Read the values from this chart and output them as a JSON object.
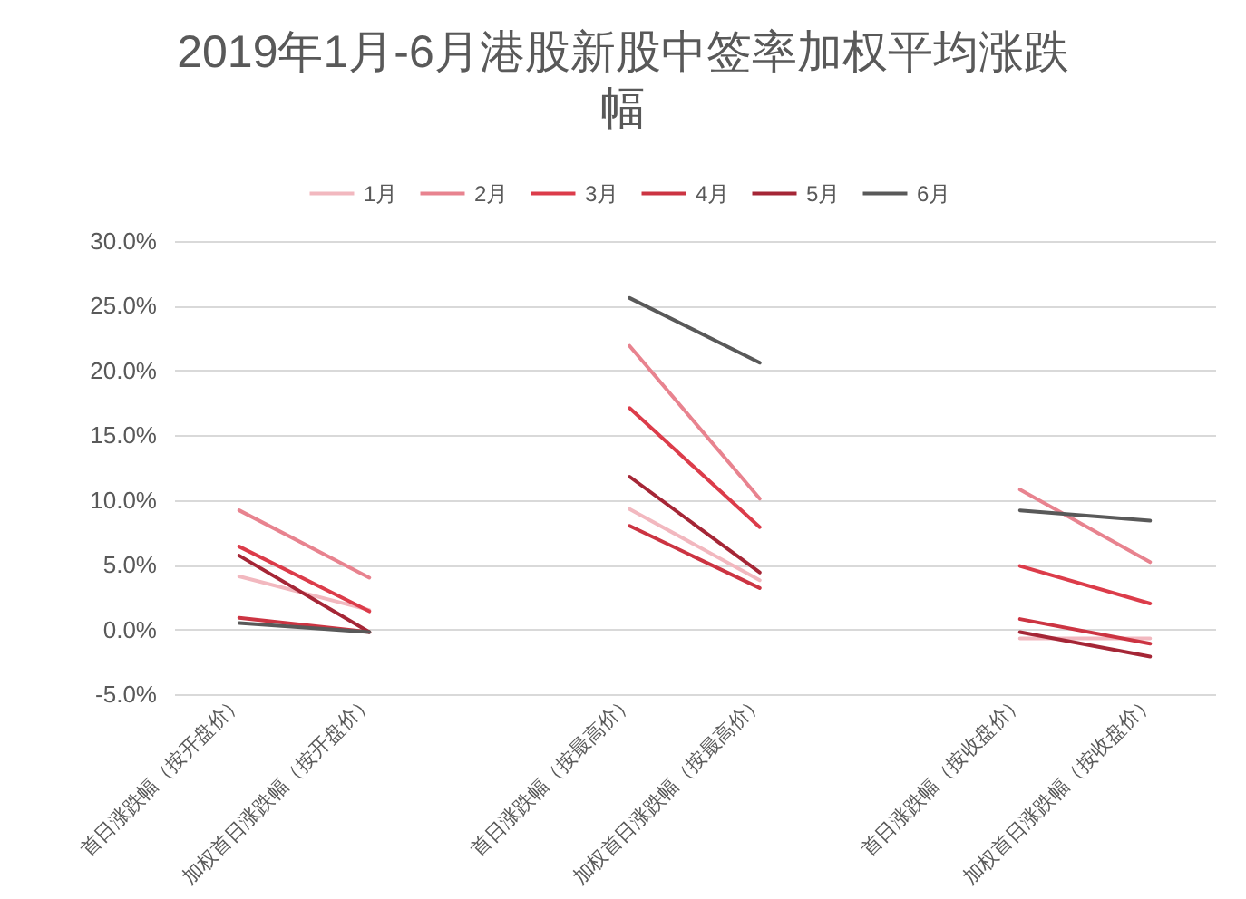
{
  "chart_data": {
    "type": "line",
    "title": "2019年1月-6月港股新股中签率加权平均涨跌幅",
    "categories": [
      "首日涨跌幅（按开盘价）",
      "加权首日涨跌幅（按开盘价）",
      null,
      "首日涨跌幅（按最高价）",
      "加权首日涨跌幅（按最高价）",
      null,
      "首日涨跌幅（按收盘价）",
      "加权首日涨跌幅（按收盘价）"
    ],
    "series": [
      {
        "name": "1月",
        "color": "#f2b8bf",
        "values": [
          4.1,
          1.5,
          null,
          9.3,
          3.8,
          null,
          -0.7,
          -0.7
        ]
      },
      {
        "name": "2月",
        "color": "#e8838f",
        "values": [
          9.2,
          4.0,
          null,
          21.9,
          10.1,
          null,
          10.8,
          5.2
        ]
      },
      {
        "name": "3月",
        "color": "#dc3c4a",
        "values": [
          6.4,
          1.4,
          null,
          17.1,
          7.9,
          null,
          4.9,
          2.0
        ]
      },
      {
        "name": "4月",
        "color": "#cc3442",
        "values": [
          0.9,
          -0.2,
          null,
          8.0,
          3.2,
          null,
          0.8,
          -1.1
        ]
      },
      {
        "name": "5月",
        "color": "#a52636",
        "values": [
          5.7,
          -0.2,
          null,
          11.8,
          4.4,
          null,
          -0.2,
          -2.1
        ]
      },
      {
        "name": "6月",
        "color": "#595959",
        "values": [
          0.5,
          -0.2,
          null,
          25.6,
          20.6,
          null,
          9.2,
          8.4
        ]
      }
    ],
    "ylim": [
      -5,
      30
    ],
    "yticks": [
      {
        "value": -5,
        "label": "-5.0%"
      },
      {
        "value": 0,
        "label": "0.0%"
      },
      {
        "value": 5,
        "label": "5.0%"
      },
      {
        "value": 10,
        "label": "10.0%"
      },
      {
        "value": 15,
        "label": "15.0%"
      },
      {
        "value": 20,
        "label": "20.0%"
      },
      {
        "value": 25,
        "label": "25.0%"
      },
      {
        "value": 30,
        "label": "30.0%"
      }
    ],
    "grid": "y",
    "legend": "top",
    "line_style": "solid"
  }
}
